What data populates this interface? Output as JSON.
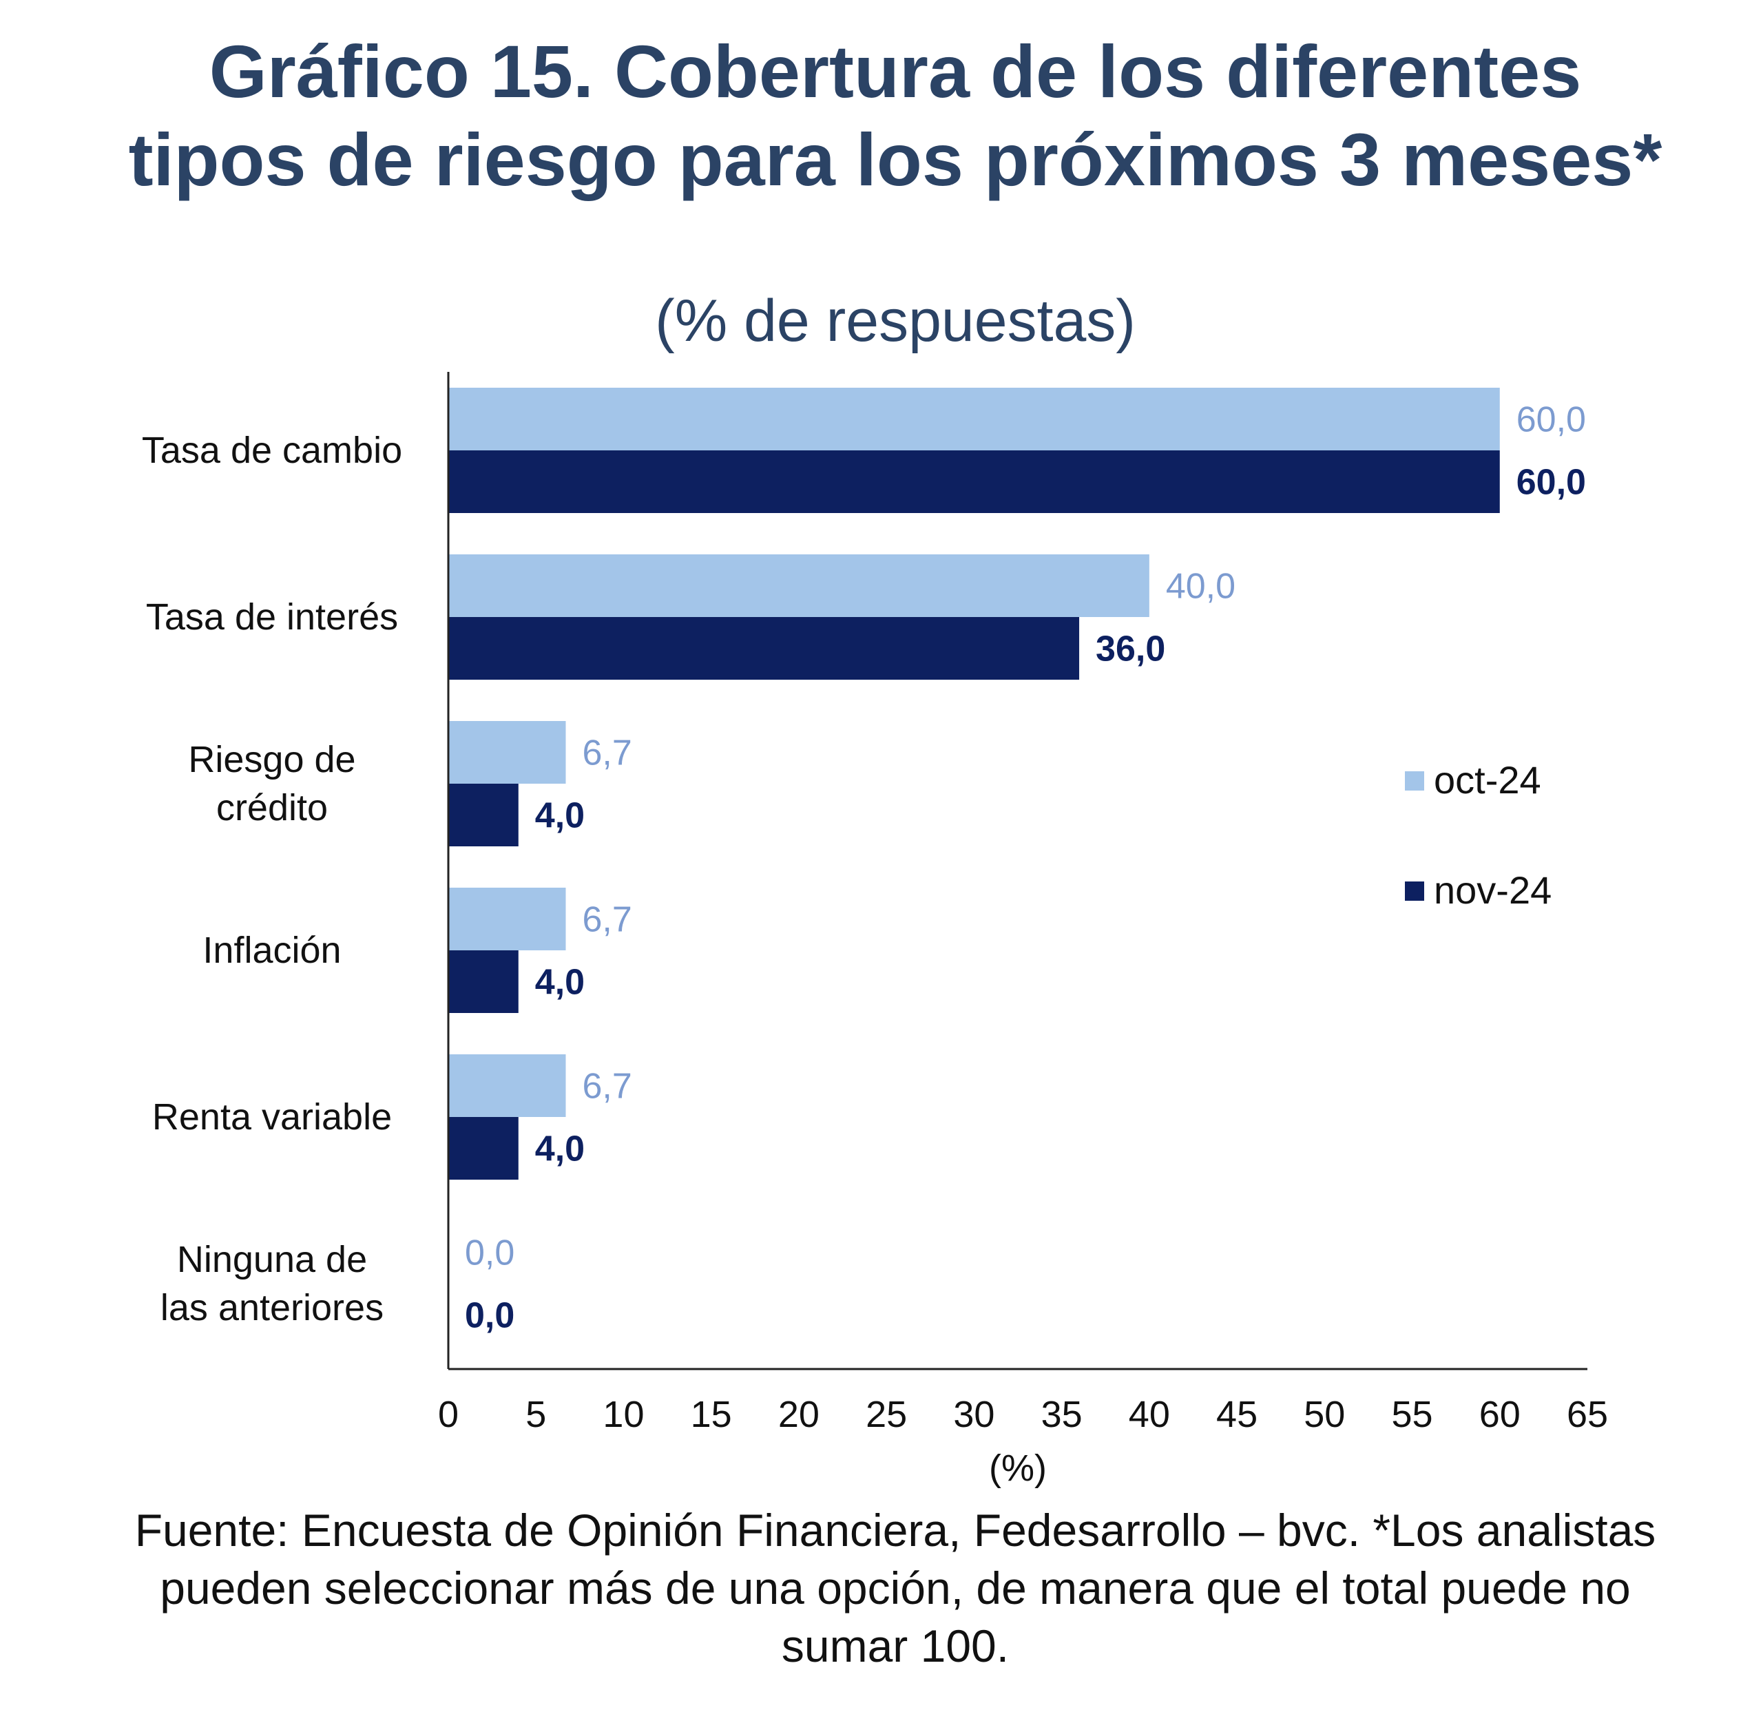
{
  "title": "Gráfico 15. Cobertura de los diferentes tipos de riesgo para los próximos 3 meses*",
  "subtitle": "(% de respuestas)",
  "source_note": "Fuente: Encuesta de Opinión Financiera, Fedesarrollo – bvc. *Los analistas pueden seleccionar más de una opción, de manera que el total puede no sumar 100.",
  "colors": {
    "oct": "#a3c5e9",
    "nov": "#0d2060",
    "oct_label": "#7c9bd0",
    "nov_label": "#0d2060",
    "title": "#2b4365"
  },
  "chart_data": {
    "type": "bar",
    "orientation": "horizontal",
    "categories": [
      "Tasa de cambio",
      "Tasa de interés",
      "Riesgo de crédito",
      "Inflación",
      "Renta variable",
      "Ninguna de las anteriores"
    ],
    "series": [
      {
        "name": "oct-24",
        "values": [
          60.0,
          40.0,
          6.7,
          6.7,
          6.7,
          0.0
        ],
        "labels": [
          "60,0",
          "40,0",
          "6,7",
          "6,7",
          "6,7",
          "0,0"
        ]
      },
      {
        "name": "nov-24",
        "values": [
          60.0,
          36.0,
          4.0,
          4.0,
          4.0,
          0.0
        ],
        "labels": [
          "60,0",
          "36,0",
          "4,0",
          "4,0",
          "4,0",
          "0,0"
        ]
      }
    ],
    "xlabel": "(%)",
    "ylabel": "",
    "xlim": [
      0,
      65
    ],
    "xticks": [
      0,
      5,
      10,
      15,
      20,
      25,
      30,
      35,
      40,
      45,
      50,
      55,
      60,
      65
    ],
    "grid": false,
    "legend_position": "right"
  }
}
